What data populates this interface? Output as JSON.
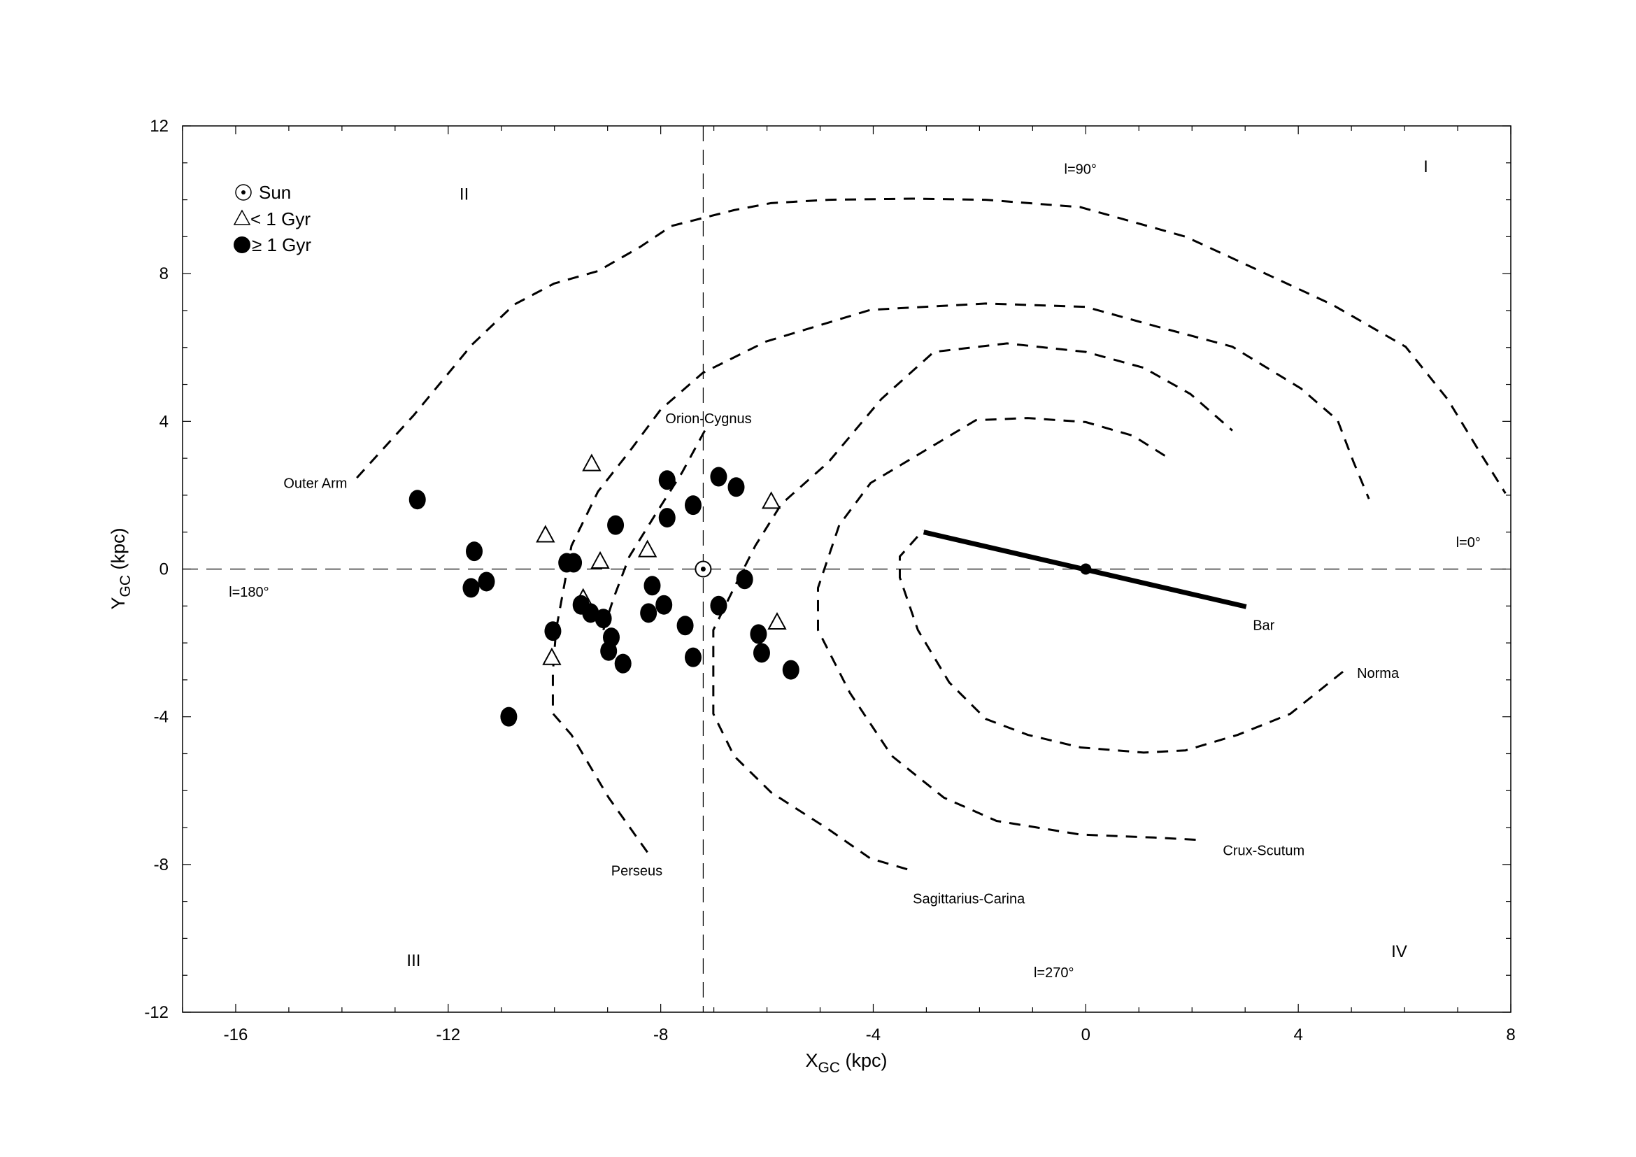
{
  "chart_data": {
    "type": "scatter",
    "xlabel": {
      "main": "X",
      "sub": "GC",
      "unit": " (kpc)"
    },
    "ylabel": {
      "main": "Y",
      "sub": "GC",
      "unit": " (kpc)"
    },
    "xlim": [
      -17,
      8
    ],
    "ylim": [
      -12,
      12
    ],
    "xticks": [
      -16,
      -12,
      -8,
      -4,
      0,
      4,
      8
    ],
    "yticks": [
      -12,
      -8,
      -4,
      0,
      4,
      8,
      12
    ],
    "grid": false,
    "legend": {
      "placement": "top-left",
      "entries": [
        {
          "marker": "sun",
          "label": "Sun"
        },
        {
          "marker": "triangle",
          "label": "< 1 Gyr"
        },
        {
          "marker": "circle",
          "label": "≥ 1 Gyr"
        }
      ]
    },
    "sun": {
      "x": -7.2,
      "y": 0
    },
    "reference_lines": {
      "x": -7.2,
      "y": 0
    },
    "series": [
      {
        "name": "< 1 Gyr",
        "marker": "triangle",
        "points": [
          [
            -9.3,
            2.84
          ],
          [
            -10.17,
            0.91
          ],
          [
            -9.14,
            0.2
          ],
          [
            -8.25,
            0.51
          ],
          [
            -9.46,
            -0.8
          ],
          [
            -10.05,
            -2.41
          ],
          [
            -5.92,
            1.82
          ],
          [
            -5.81,
            -1.45
          ]
        ]
      },
      {
        "name": "≥ 1 Gyr",
        "marker": "circle",
        "points": [
          [
            -12.58,
            1.88
          ],
          [
            -11.51,
            0.48
          ],
          [
            -11.57,
            -0.51
          ],
          [
            -11.28,
            -0.34
          ],
          [
            -10.86,
            -4.0
          ],
          [
            -10.03,
            -1.68
          ],
          [
            -9.77,
            0.17
          ],
          [
            -9.64,
            0.17
          ],
          [
            -9.5,
            -0.97
          ],
          [
            -9.32,
            -1.19
          ],
          [
            -9.08,
            -1.34
          ],
          [
            -8.93,
            -1.85
          ],
          [
            -8.98,
            -2.22
          ],
          [
            -8.71,
            -2.56
          ],
          [
            -8.85,
            1.19
          ],
          [
            -8.23,
            -1.19
          ],
          [
            -8.16,
            -0.45
          ],
          [
            -7.94,
            -0.97
          ],
          [
            -7.88,
            1.39
          ],
          [
            -7.88,
            2.41
          ],
          [
            -7.54,
            -1.53
          ],
          [
            -7.39,
            -2.39
          ],
          [
            -7.39,
            1.73
          ],
          [
            -6.91,
            2.5
          ],
          [
            -6.58,
            2.22
          ],
          [
            -6.42,
            -0.28
          ],
          [
            -6.91,
            -0.99
          ],
          [
            -6.16,
            -1.76
          ],
          [
            -6.1,
            -2.27
          ],
          [
            -5.55,
            -2.73
          ]
        ]
      }
    ],
    "arms": [
      {
        "name": "Outer Arm",
        "label_at": [
          -14.5,
          2.2
        ],
        "points": [
          [
            -13.72,
            2.47
          ],
          [
            -12.64,
            4.18
          ],
          [
            -11.55,
            6.08
          ],
          [
            -10.76,
            7.16
          ],
          [
            -10.01,
            7.73
          ],
          [
            -9.18,
            8.07
          ],
          [
            -8.39,
            8.72
          ],
          [
            -7.8,
            9.29
          ],
          [
            -6.62,
            9.72
          ],
          [
            -5.92,
            9.91
          ],
          [
            -4.84,
            10.0
          ],
          [
            -3.26,
            10.03
          ],
          [
            -1.88,
            10.0
          ],
          [
            -0.1,
            9.8
          ],
          [
            1.88,
            9.0
          ],
          [
            2.86,
            8.35
          ],
          [
            4.64,
            7.16
          ],
          [
            6.02,
            6.02
          ],
          [
            6.81,
            4.6
          ],
          [
            7.41,
            3.18
          ],
          [
            7.9,
            2.05
          ]
        ]
      },
      {
        "name": "Perseus",
        "label_at": [
          -8.45,
          -8.3
        ],
        "points": [
          [
            -8.25,
            -7.67
          ],
          [
            -8.98,
            -6.19
          ],
          [
            -9.68,
            -4.49
          ],
          [
            -10.03,
            -3.91
          ],
          [
            -10.03,
            -2.78
          ],
          [
            -9.97,
            -1.65
          ],
          [
            -9.68,
            0.63
          ],
          [
            -9.18,
            2.1
          ],
          [
            -8.59,
            3.18
          ],
          [
            -8.0,
            4.32
          ],
          [
            -7.21,
            5.31
          ],
          [
            -6.02,
            6.16
          ],
          [
            -4.05,
            7.02
          ],
          [
            -1.88,
            7.19
          ],
          [
            0,
            7.1
          ],
          [
            1.28,
            6.59
          ],
          [
            2.76,
            6.02
          ],
          [
            4.05,
            4.89
          ],
          [
            4.74,
            4.03
          ],
          [
            5.04,
            2.9
          ],
          [
            5.33,
            1.9
          ]
        ]
      },
      {
        "name": "Orion-Cygnus",
        "label_at": [
          -7.1,
          3.95
        ],
        "points": [
          [
            -7.17,
            3.75
          ],
          [
            -7.6,
            2.61
          ],
          [
            -8.1,
            1.48
          ],
          [
            -8.59,
            0.34
          ],
          [
            -8.89,
            -0.8
          ],
          [
            -9.08,
            -1.65
          ]
        ]
      },
      {
        "name": "Sagittarius-Carina",
        "label_at": [
          -2.2,
          -9.05
        ],
        "points": [
          [
            -3.36,
            -8.13
          ],
          [
            -4.05,
            -7.84
          ],
          [
            -4.84,
            -7.05
          ],
          [
            -5.92,
            -6.05
          ],
          [
            -6.62,
            -5.06
          ],
          [
            -7.01,
            -3.92
          ],
          [
            -7.01,
            -1.65
          ],
          [
            -6.62,
            -0.51
          ],
          [
            -6.22,
            0.63
          ],
          [
            -5.73,
            1.76
          ],
          [
            -4.84,
            2.9
          ],
          [
            -3.85,
            4.6
          ],
          [
            -2.86,
            5.88
          ],
          [
            -1.48,
            6.11
          ],
          [
            0,
            5.88
          ],
          [
            1.09,
            5.45
          ],
          [
            1.97,
            4.74
          ],
          [
            2.76,
            3.75
          ]
        ]
      },
      {
        "name": "Crux-Scutum",
        "label_at": [
          3.35,
          -7.75
        ],
        "points": [
          [
            2.07,
            -7.33
          ],
          [
            1.28,
            -7.27
          ],
          [
            -0.1,
            -7.19
          ],
          [
            -1.68,
            -6.82
          ],
          [
            -2.67,
            -6.19
          ],
          [
            -3.65,
            -5.06
          ],
          [
            -4.44,
            -3.35
          ],
          [
            -5.04,
            -1.65
          ],
          [
            -5.04,
            -0.51
          ],
          [
            -4.64,
            1.19
          ],
          [
            -4.05,
            2.33
          ],
          [
            -3.06,
            3.18
          ],
          [
            -2.07,
            4.03
          ],
          [
            -1.09,
            4.09
          ],
          [
            0,
            3.98
          ],
          [
            0.89,
            3.61
          ],
          [
            1.62,
            2.95
          ]
        ]
      },
      {
        "name": "Norma",
        "label_at": [
          5.5,
          -2.95
        ],
        "points": [
          [
            4.84,
            -2.78
          ],
          [
            3.85,
            -3.92
          ],
          [
            2.86,
            -4.49
          ],
          [
            1.88,
            -4.91
          ],
          [
            1.09,
            -4.97
          ],
          [
            -0.1,
            -4.83
          ],
          [
            -1.09,
            -4.49
          ],
          [
            -1.88,
            -4.06
          ],
          [
            -2.57,
            -3.07
          ],
          [
            -3.16,
            -1.65
          ],
          [
            -3.5,
            -0.23
          ],
          [
            -3.5,
            0.34
          ],
          [
            -3.06,
            1.05
          ]
        ]
      }
    ],
    "bar": {
      "name": "Bar",
      "label_at": [
        3.35,
        -1.65
      ],
      "from": [
        -3.05,
        1.0
      ],
      "to": [
        3.02,
        -1.02
      ],
      "center": [
        0,
        0
      ]
    },
    "annotations": [
      {
        "text": "I",
        "at": [
          6.4,
          10.75
        ],
        "kind": "quad"
      },
      {
        "text": "II",
        "at": [
          -11.7,
          10.0
        ],
        "kind": "quad"
      },
      {
        "text": "III",
        "at": [
          -12.65,
          -10.75
        ],
        "kind": "quad"
      },
      {
        "text": "IV",
        "at": [
          5.9,
          -10.5
        ],
        "kind": "quad"
      },
      {
        "text": "l=90°",
        "at": [
          -0.1,
          10.7
        ],
        "kind": "annot"
      },
      {
        "text": "l=0°",
        "at": [
          7.2,
          0.6
        ],
        "kind": "annot"
      },
      {
        "text": "l=180°",
        "at": [
          -15.75,
          -0.75
        ],
        "kind": "annot"
      },
      {
        "text": "l=270°",
        "at": [
          -0.6,
          -11.05
        ],
        "kind": "annot"
      }
    ]
  }
}
